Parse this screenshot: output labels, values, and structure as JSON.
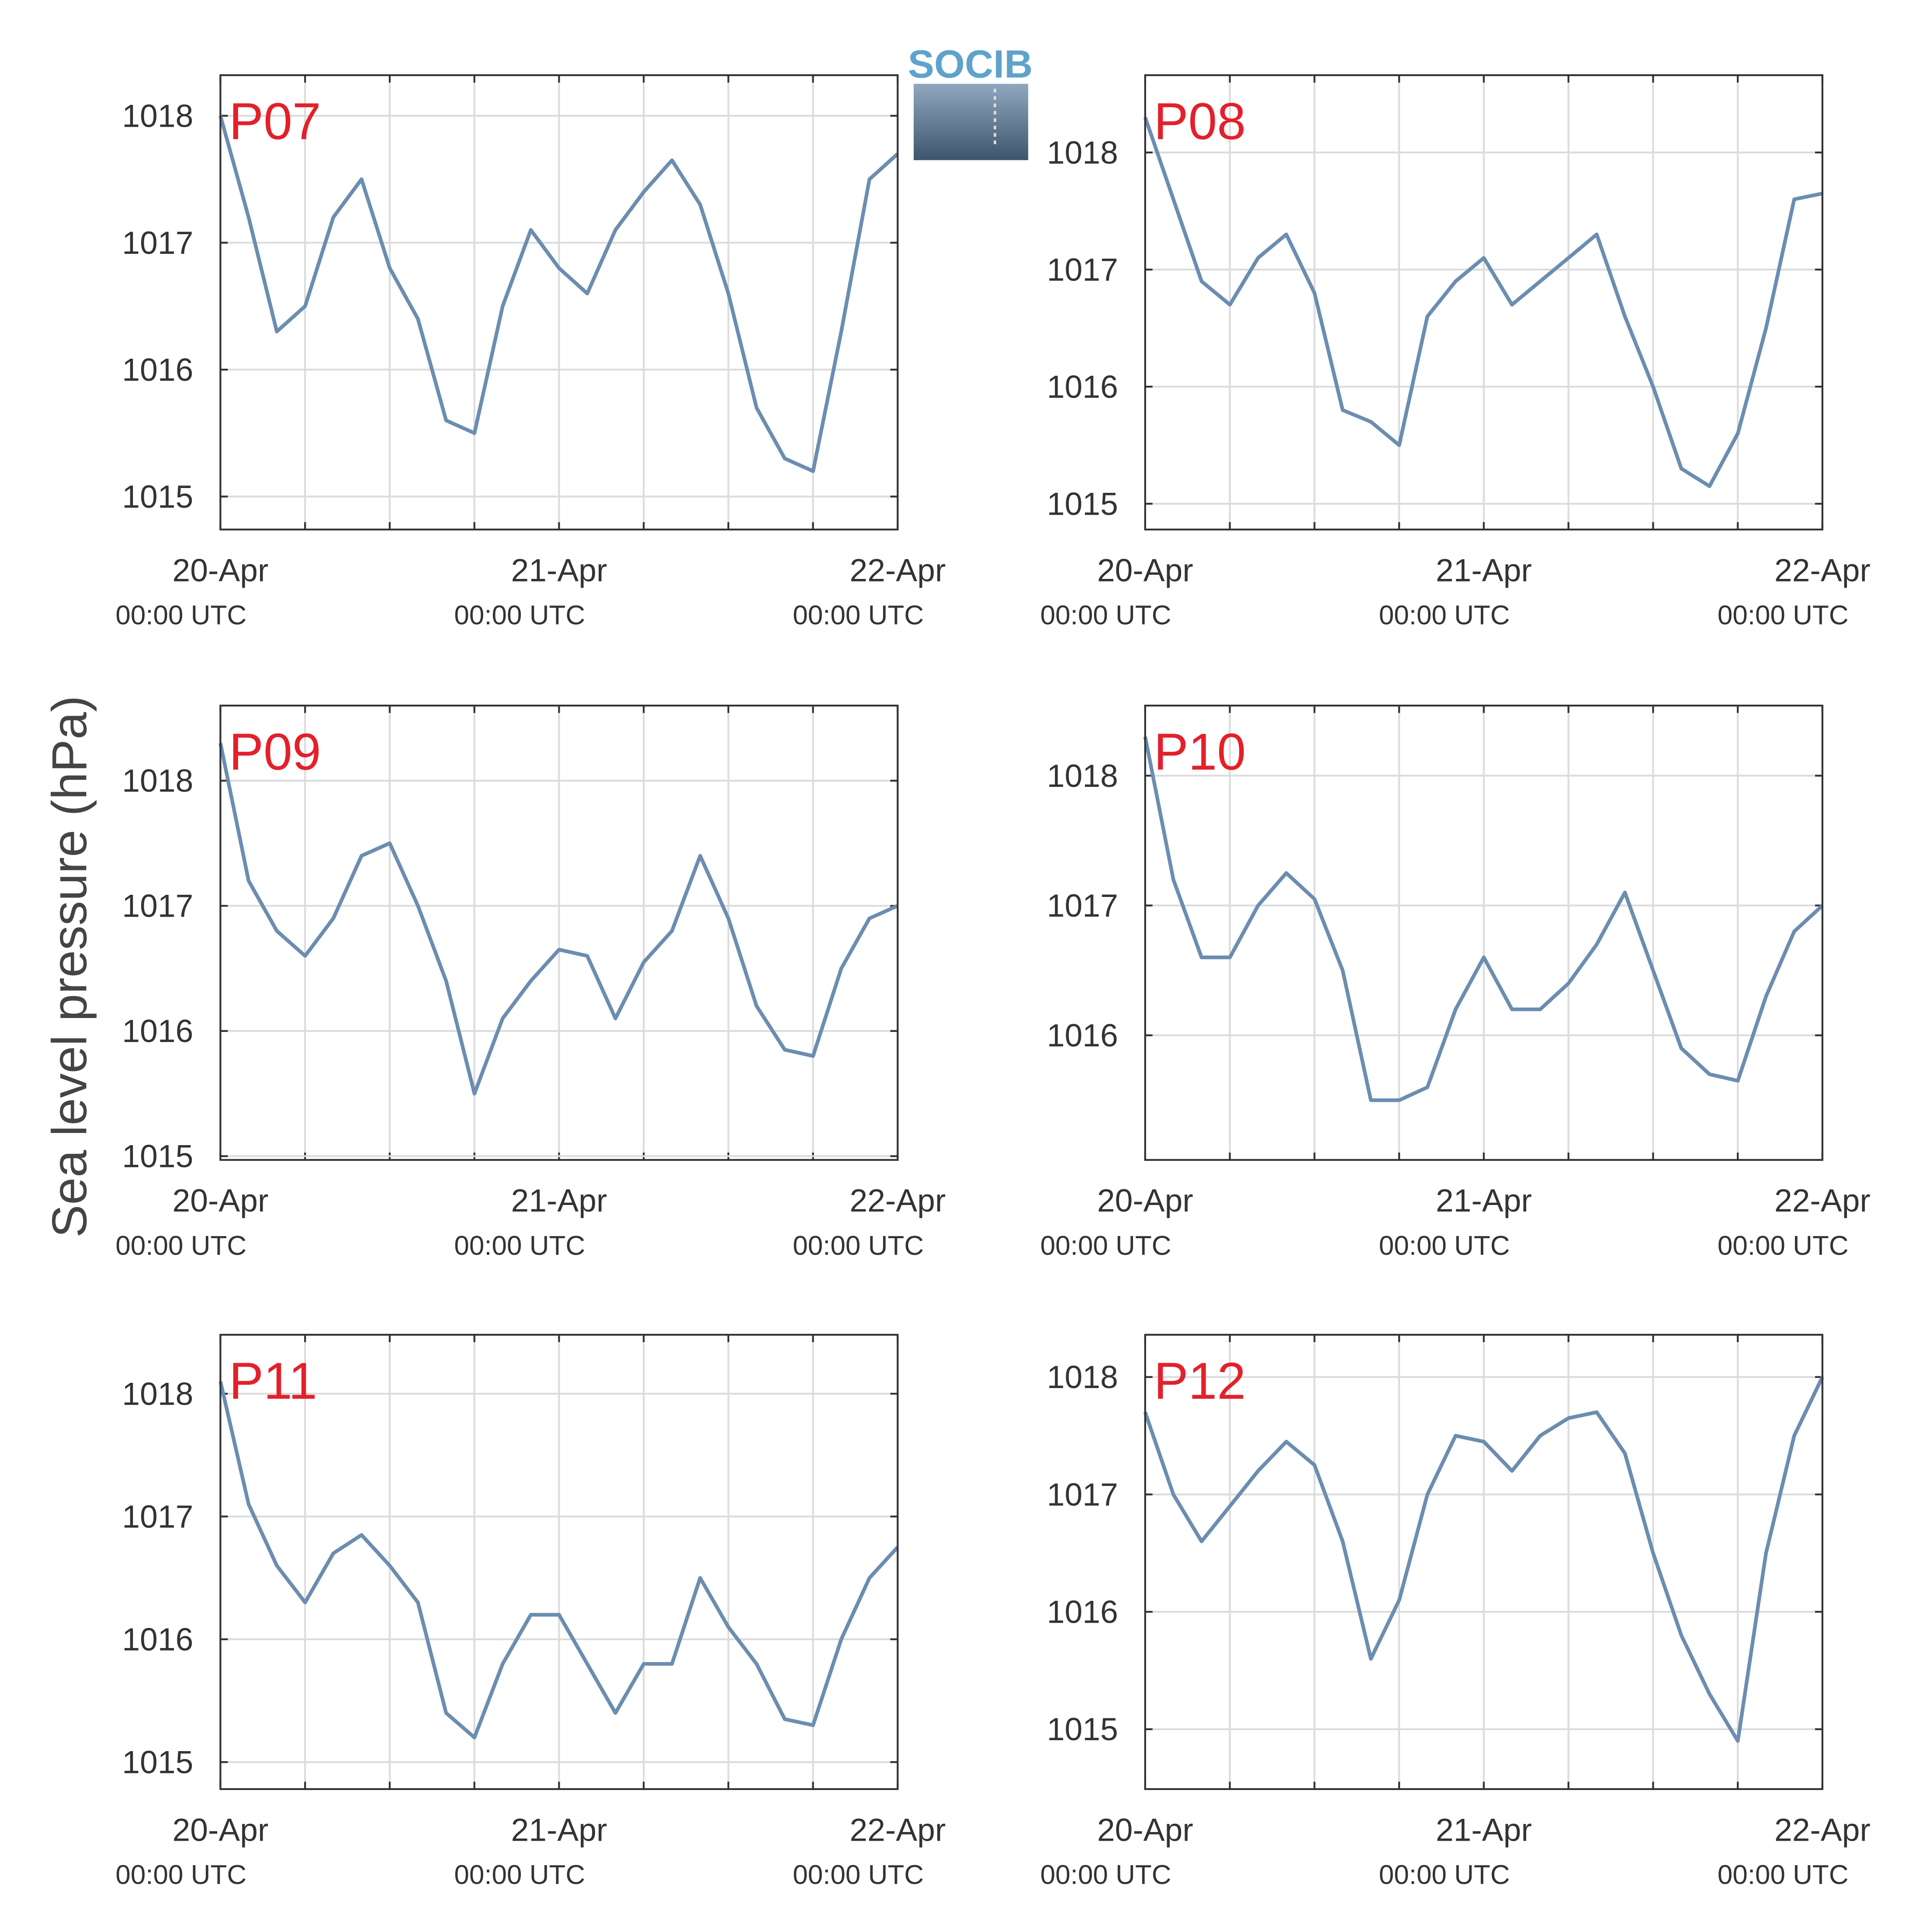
{
  "ylabel": "Sea level pressure (hPa)",
  "logo": "SOCIB",
  "chart_data": [
    {
      "type": "line",
      "title": "P07",
      "x": [
        0,
        2,
        4,
        6,
        8,
        10,
        12,
        14,
        16,
        18,
        20,
        22,
        24,
        26,
        28,
        30,
        32,
        34,
        36,
        38,
        40,
        42,
        44,
        46,
        48
      ],
      "series": [
        {
          "color": "#6b8db0",
          "values": [
            1018.0,
            1017.2,
            1016.3,
            1016.5,
            1017.2,
            1017.5,
            1016.8,
            1016.4,
            1015.6,
            1015.5,
            1016.5,
            1017.1,
            1016.8,
            1016.6,
            1017.1,
            1017.4,
            1017.65,
            1017.3,
            1016.6,
            1015.7,
            1015.3,
            1015.2,
            1016.3,
            1017.5,
            1017.7
          ]
        }
      ],
      "xlim": [
        0,
        48
      ],
      "xticks": [
        {
          "value": 0,
          "label": "20-Apr",
          "sublabel": "00:00 UTC"
        },
        {
          "value": 24,
          "label": "21-Apr",
          "sublabel": "00:00 UTC"
        },
        {
          "value": 48,
          "label": "22-Apr",
          "sublabel": "00:00 UTC"
        }
      ],
      "xminor": [
        6,
        12,
        18,
        30,
        36,
        42
      ],
      "ylim": [
        1014.74,
        1018.32
      ],
      "yticks": [
        1015,
        1016,
        1017,
        1018
      ],
      "grid": true
    },
    {
      "type": "line",
      "title": "P08",
      "x": [
        0,
        2,
        4,
        6,
        8,
        10,
        12,
        14,
        16,
        18,
        20,
        22,
        24,
        26,
        28,
        30,
        32,
        34,
        36,
        38,
        40,
        42,
        44,
        46,
        48
      ],
      "series": [
        {
          "color": "#6b8db0",
          "values": [
            1018.3,
            1017.6,
            1016.9,
            1016.7,
            1017.1,
            1017.3,
            1016.8,
            1015.8,
            1015.7,
            1015.5,
            1016.6,
            1016.9,
            1017.1,
            1016.7,
            1016.9,
            1017.1,
            1017.3,
            1016.6,
            1016.0,
            1015.3,
            1015.15,
            1015.6,
            1016.5,
            1017.6,
            1017.65
          ]
        }
      ],
      "xlim": [
        0,
        48
      ],
      "xticks": [
        {
          "value": 0,
          "label": "20-Apr",
          "sublabel": "00:00 UTC"
        },
        {
          "value": 24,
          "label": "21-Apr",
          "sublabel": "00:00 UTC"
        },
        {
          "value": 48,
          "label": "22-Apr",
          "sublabel": "00:00 UTC"
        }
      ],
      "xminor": [
        6,
        12,
        18,
        30,
        36,
        42
      ],
      "ylim": [
        1014.78,
        1018.66
      ],
      "yticks": [
        1015,
        1016,
        1017,
        1018
      ],
      "grid": true
    },
    {
      "type": "line",
      "title": "P09",
      "x": [
        0,
        2,
        4,
        6,
        8,
        10,
        12,
        14,
        16,
        18,
        20,
        22,
        24,
        26,
        28,
        30,
        32,
        34,
        36,
        38,
        40,
        42,
        44,
        46,
        48
      ],
      "series": [
        {
          "color": "#6b8db0",
          "values": [
            1018.3,
            1017.2,
            1016.8,
            1016.6,
            1016.9,
            1017.4,
            1017.5,
            1017.0,
            1016.4,
            1015.5,
            1016.1,
            1016.4,
            1016.65,
            1016.6,
            1016.1,
            1016.55,
            1016.8,
            1017.4,
            1016.9,
            1016.2,
            1015.85,
            1015.8,
            1016.5,
            1016.9,
            1017.0
          ]
        }
      ],
      "xlim": [
        0,
        48
      ],
      "xticks": [
        {
          "value": 0,
          "label": "20-Apr",
          "sublabel": "00:00 UTC"
        },
        {
          "value": 24,
          "label": "21-Apr",
          "sublabel": "00:00 UTC"
        },
        {
          "value": 48,
          "label": "22-Apr",
          "sublabel": "00:00 UTC"
        }
      ],
      "xminor": [
        6,
        12,
        18,
        30,
        36,
        42
      ],
      "ylim": [
        1014.97,
        1018.6
      ],
      "yticks": [
        1015,
        1016,
        1017,
        1018
      ],
      "grid": true
    },
    {
      "type": "line",
      "title": "P10",
      "x": [
        0,
        2,
        4,
        6,
        8,
        10,
        12,
        14,
        16,
        18,
        20,
        22,
        24,
        26,
        28,
        30,
        32,
        34,
        36,
        38,
        40,
        42,
        44,
        46,
        48
      ],
      "series": [
        {
          "color": "#6b8db0",
          "values": [
            1018.3,
            1017.2,
            1016.6,
            1016.6,
            1017.0,
            1017.25,
            1017.05,
            1016.5,
            1015.5,
            1015.5,
            1015.6,
            1016.2,
            1016.6,
            1016.2,
            1016.2,
            1016.4,
            1016.7,
            1017.1,
            1016.5,
            1015.9,
            1015.7,
            1015.65,
            1016.3,
            1016.8,
            1017.0
          ]
        }
      ],
      "xlim": [
        0,
        48
      ],
      "xticks": [
        {
          "value": 0,
          "label": "20-Apr",
          "sublabel": "00:00 UTC"
        },
        {
          "value": 24,
          "label": "21-Apr",
          "sublabel": "00:00 UTC"
        },
        {
          "value": 48,
          "label": "22-Apr",
          "sublabel": "00:00 UTC"
        }
      ],
      "xminor": [
        6,
        12,
        18,
        30,
        36,
        42
      ],
      "ylim": [
        1015.04,
        1018.54
      ],
      "yticks": [
        1016,
        1017,
        1018
      ],
      "grid": true
    },
    {
      "type": "line",
      "title": "P11",
      "x": [
        0,
        2,
        4,
        6,
        8,
        10,
        12,
        14,
        16,
        18,
        20,
        22,
        24,
        26,
        28,
        30,
        32,
        34,
        36,
        38,
        40,
        42,
        44,
        46,
        48
      ],
      "series": [
        {
          "color": "#6b8db0",
          "values": [
            1018.1,
            1017.1,
            1016.6,
            1016.3,
            1016.7,
            1016.85,
            1016.6,
            1016.3,
            1015.4,
            1015.2,
            1015.8,
            1016.2,
            1016.2,
            1015.8,
            1015.4,
            1015.8,
            1015.8,
            1016.5,
            1016.1,
            1015.8,
            1015.35,
            1015.3,
            1016.0,
            1016.5,
            1016.75
          ]
        }
      ],
      "xlim": [
        0,
        48
      ],
      "xticks": [
        {
          "value": 0,
          "label": "20-Apr",
          "sublabel": "00:00 UTC"
        },
        {
          "value": 24,
          "label": "21-Apr",
          "sublabel": "00:00 UTC"
        },
        {
          "value": 48,
          "label": "22-Apr",
          "sublabel": "00:00 UTC"
        }
      ],
      "xminor": [
        6,
        12,
        18,
        30,
        36,
        42
      ],
      "ylim": [
        1014.78,
        1018.48
      ],
      "yticks": [
        1015,
        1016,
        1017,
        1018
      ],
      "grid": true
    },
    {
      "type": "line",
      "title": "P12",
      "x": [
        0,
        2,
        4,
        6,
        8,
        10,
        12,
        14,
        16,
        18,
        20,
        22,
        24,
        26,
        28,
        30,
        32,
        34,
        36,
        38,
        40,
        42,
        44,
        46,
        48
      ],
      "series": [
        {
          "color": "#6b8db0",
          "values": [
            1017.7,
            1017.0,
            1016.6,
            1016.9,
            1017.2,
            1017.45,
            1017.25,
            1016.6,
            1015.6,
            1016.1,
            1017.0,
            1017.5,
            1017.45,
            1017.2,
            1017.5,
            1017.65,
            1017.7,
            1017.35,
            1016.5,
            1015.8,
            1015.3,
            1014.9,
            1016.5,
            1017.5,
            1018.0
          ]
        }
      ],
      "xlim": [
        0,
        48
      ],
      "xticks": [
        {
          "value": 0,
          "label": "20-Apr",
          "sublabel": "00:00 UTC"
        },
        {
          "value": 24,
          "label": "21-Apr",
          "sublabel": "00:00 UTC"
        },
        {
          "value": 48,
          "label": "22-Apr",
          "sublabel": "00:00 UTC"
        }
      ],
      "xminor": [
        6,
        12,
        18,
        30,
        36,
        42
      ],
      "ylim": [
        1014.49,
        1018.36
      ],
      "yticks": [
        1015,
        1016,
        1017,
        1018
      ],
      "grid": true
    }
  ]
}
